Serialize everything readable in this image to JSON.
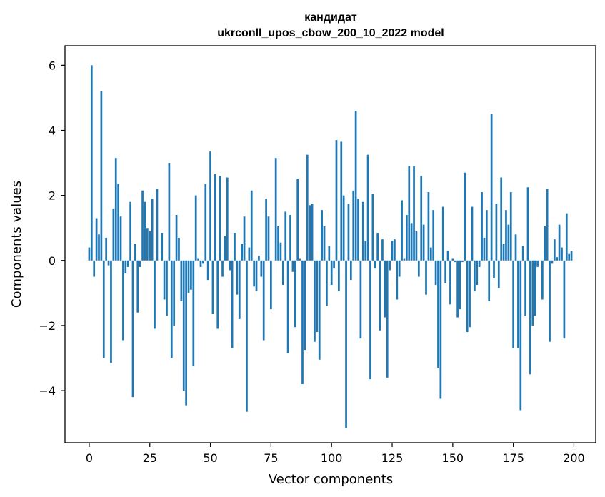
{
  "chart_data": {
    "type": "bar",
    "title": "кандидат",
    "subtitle": "ukrconll_upos_cbow_200_10_2022 model",
    "xlabel": "Vector components",
    "ylabel": "Components values",
    "xlim": [
      -10,
      209
    ],
    "ylim": [
      -5.6,
      6.6
    ],
    "xticks": [
      0,
      25,
      50,
      75,
      100,
      125,
      150,
      175,
      200
    ],
    "yticks": [
      -4,
      -2,
      0,
      2,
      4,
      6
    ],
    "ytick_labels": [
      "−4",
      "−2",
      "0",
      "2",
      "4",
      "6"
    ],
    "bar_color": "#1f77b4",
    "grid": false,
    "x": [
      0,
      1,
      2,
      3,
      4,
      5,
      6,
      7,
      8,
      9,
      10,
      11,
      12,
      13,
      14,
      15,
      16,
      17,
      18,
      19,
      20,
      21,
      22,
      23,
      24,
      25,
      26,
      27,
      28,
      29,
      30,
      31,
      32,
      33,
      34,
      35,
      36,
      37,
      38,
      39,
      40,
      41,
      42,
      43,
      44,
      45,
      46,
      47,
      48,
      49,
      50,
      51,
      52,
      53,
      54,
      55,
      56,
      57,
      58,
      59,
      60,
      61,
      62,
      63,
      64,
      65,
      66,
      67,
      68,
      69,
      70,
      71,
      72,
      73,
      74,
      75,
      76,
      77,
      78,
      79,
      80,
      81,
      82,
      83,
      84,
      85,
      86,
      87,
      88,
      89,
      90,
      91,
      92,
      93,
      94,
      95,
      96,
      97,
      98,
      99,
      100,
      101,
      102,
      103,
      104,
      105,
      106,
      107,
      108,
      109,
      110,
      111,
      112,
      113,
      114,
      115,
      116,
      117,
      118,
      119,
      120,
      121,
      122,
      123,
      124,
      125,
      126,
      127,
      128,
      129,
      130,
      131,
      132,
      133,
      134,
      135,
      136,
      137,
      138,
      139,
      140,
      141,
      142,
      143,
      144,
      145,
      146,
      147,
      148,
      149,
      150,
      151,
      152,
      153,
      154,
      155,
      156,
      157,
      158,
      159,
      160,
      161,
      162,
      163,
      164,
      165,
      166,
      167,
      168,
      169,
      170,
      171,
      172,
      173,
      174,
      175,
      176,
      177,
      178,
      179,
      180,
      181,
      182,
      183,
      184,
      185,
      186,
      187,
      188,
      189,
      190,
      191,
      192,
      193,
      194,
      195,
      196,
      197,
      198,
      199
    ],
    "values": [
      0.4,
      6.0,
      -0.5,
      1.3,
      0.8,
      5.2,
      -3.0,
      0.7,
      -0.15,
      -3.15,
      1.6,
      3.15,
      2.35,
      1.35,
      -2.45,
      -0.4,
      -0.2,
      1.8,
      -4.2,
      0.5,
      -1.6,
      -0.2,
      2.15,
      1.8,
      1.0,
      0.9,
      1.9,
      -2.1,
      2.2,
      0.0,
      0.85,
      -1.2,
      -1.7,
      3.0,
      -3.0,
      -2.0,
      1.4,
      0.7,
      -1.25,
      -4.0,
      -4.45,
      -1.0,
      -0.9,
      -3.25,
      2.0,
      0.05,
      -0.2,
      -0.1,
      2.35,
      -0.6,
      3.35,
      -1.65,
      2.65,
      -2.1,
      2.6,
      -0.5,
      0.75,
      2.55,
      -0.3,
      -2.7,
      0.85,
      -1.05,
      -1.8,
      0.5,
      1.35,
      -4.65,
      0.4,
      2.15,
      -0.8,
      -0.95,
      0.15,
      -0.5,
      -2.45,
      1.9,
      1.35,
      -1.5,
      0.0,
      3.15,
      1.05,
      0.55,
      -0.75,
      1.5,
      -2.85,
      1.4,
      -0.35,
      -2.05,
      2.5,
      0.05,
      -3.8,
      -2.75,
      3.25,
      1.7,
      1.75,
      -2.5,
      -2.2,
      -3.05,
      1.55,
      1.05,
      -1.4,
      0.45,
      -0.75,
      -0.25,
      3.7,
      -0.95,
      3.65,
      2.0,
      -5.15,
      1.75,
      -0.6,
      2.15,
      4.6,
      1.9,
      -2.4,
      1.8,
      0.6,
      3.25,
      -3.65,
      2.05,
      -0.25,
      0.85,
      -2.15,
      0.65,
      -1.75,
      -3.6,
      -0.3,
      0.6,
      0.65,
      -1.2,
      -0.5,
      1.85,
      0.05,
      1.4,
      2.9,
      1.15,
      2.9,
      0.9,
      -0.5,
      2.6,
      1.1,
      -1.05,
      2.1,
      0.4,
      1.55,
      -0.75,
      -3.3,
      -4.25,
      1.65,
      -0.7,
      0.3,
      -1.35,
      0.05,
      -0.05,
      -1.75,
      -1.5,
      -0.05,
      2.7,
      -2.2,
      -2.05,
      1.65,
      -0.95,
      -0.75,
      -0.2,
      2.1,
      0.7,
      1.55,
      -1.25,
      4.5,
      -0.55,
      1.75,
      -0.85,
      2.55,
      0.5,
      1.55,
      1.1,
      2.1,
      -2.7,
      0.8,
      -2.7,
      -4.6,
      0.45,
      -1.7,
      2.25,
      -3.5,
      -2.0,
      -1.7,
      -0.2,
      0.0,
      -1.2,
      1.05,
      2.2,
      -2.5,
      -0.1,
      0.65,
      0.1,
      1.1,
      0.4,
      -2.4,
      1.45,
      0.2,
      0.3
    ]
  }
}
